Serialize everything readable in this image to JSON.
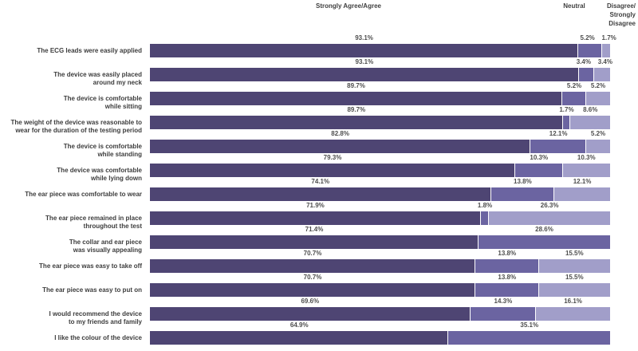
{
  "header": {
    "col_agree": "Strongly Agree/Agree",
    "col_neutral": "Neutral",
    "col_disagree": "Disagree/\nStrongly\nDisagree"
  },
  "colors": {
    "agree": "#4e4573",
    "neutral": "#6b64a1",
    "disagree": "#a19ec9",
    "label_text": "#3d3d3d",
    "value_text": "#4d4d4d"
  },
  "chart_data": {
    "type": "bar",
    "orientation": "horizontal",
    "stacked": true,
    "unit": "%",
    "xlim": [
      0,
      100
    ],
    "grid": false,
    "legend_position": "top-as-column-headers",
    "title": "",
    "xlabel": "",
    "ylabel": "",
    "categories": [
      "The ECG leads were easily applied",
      "The device was easily placed\naround my neck",
      "The device is comfortable\nwhile sitting",
      "The weight of the device was reasonable to\nwear for the duration of the testing period",
      "The device is comfortable\nwhile standing",
      "The device was comfortable\nwhile lying down",
      "The ear piece was comfortable to wear",
      "The ear piece remained in place\nthroughout the test",
      "The collar and ear piece\nwas visually appealing",
      "The ear piece was easy to take off",
      "The ear piece was easy to put on",
      "I would recommend the device\nto my friends and family",
      "I like the colour of the device"
    ],
    "series": [
      {
        "name": "Strongly Agree/Agree",
        "color": "#4e4573",
        "values": [
          93.1,
          93.1,
          89.7,
          89.7,
          82.8,
          79.3,
          74.1,
          71.9,
          71.4,
          70.7,
          70.7,
          69.6,
          64.9
        ]
      },
      {
        "name": "Neutral",
        "color": "#6b64a1",
        "values": [
          5.2,
          3.4,
          5.2,
          1.7,
          12.1,
          10.3,
          13.8,
          1.8,
          28.6,
          13.8,
          13.8,
          14.3,
          35.1
        ]
      },
      {
        "name": "Disagree/Strongly Disagree",
        "color": "#a19ec9",
        "values": [
          1.7,
          3.4,
          5.2,
          8.6,
          5.2,
          10.3,
          12.1,
          26.3,
          0,
          15.5,
          15.5,
          16.1,
          0
        ]
      }
    ]
  }
}
